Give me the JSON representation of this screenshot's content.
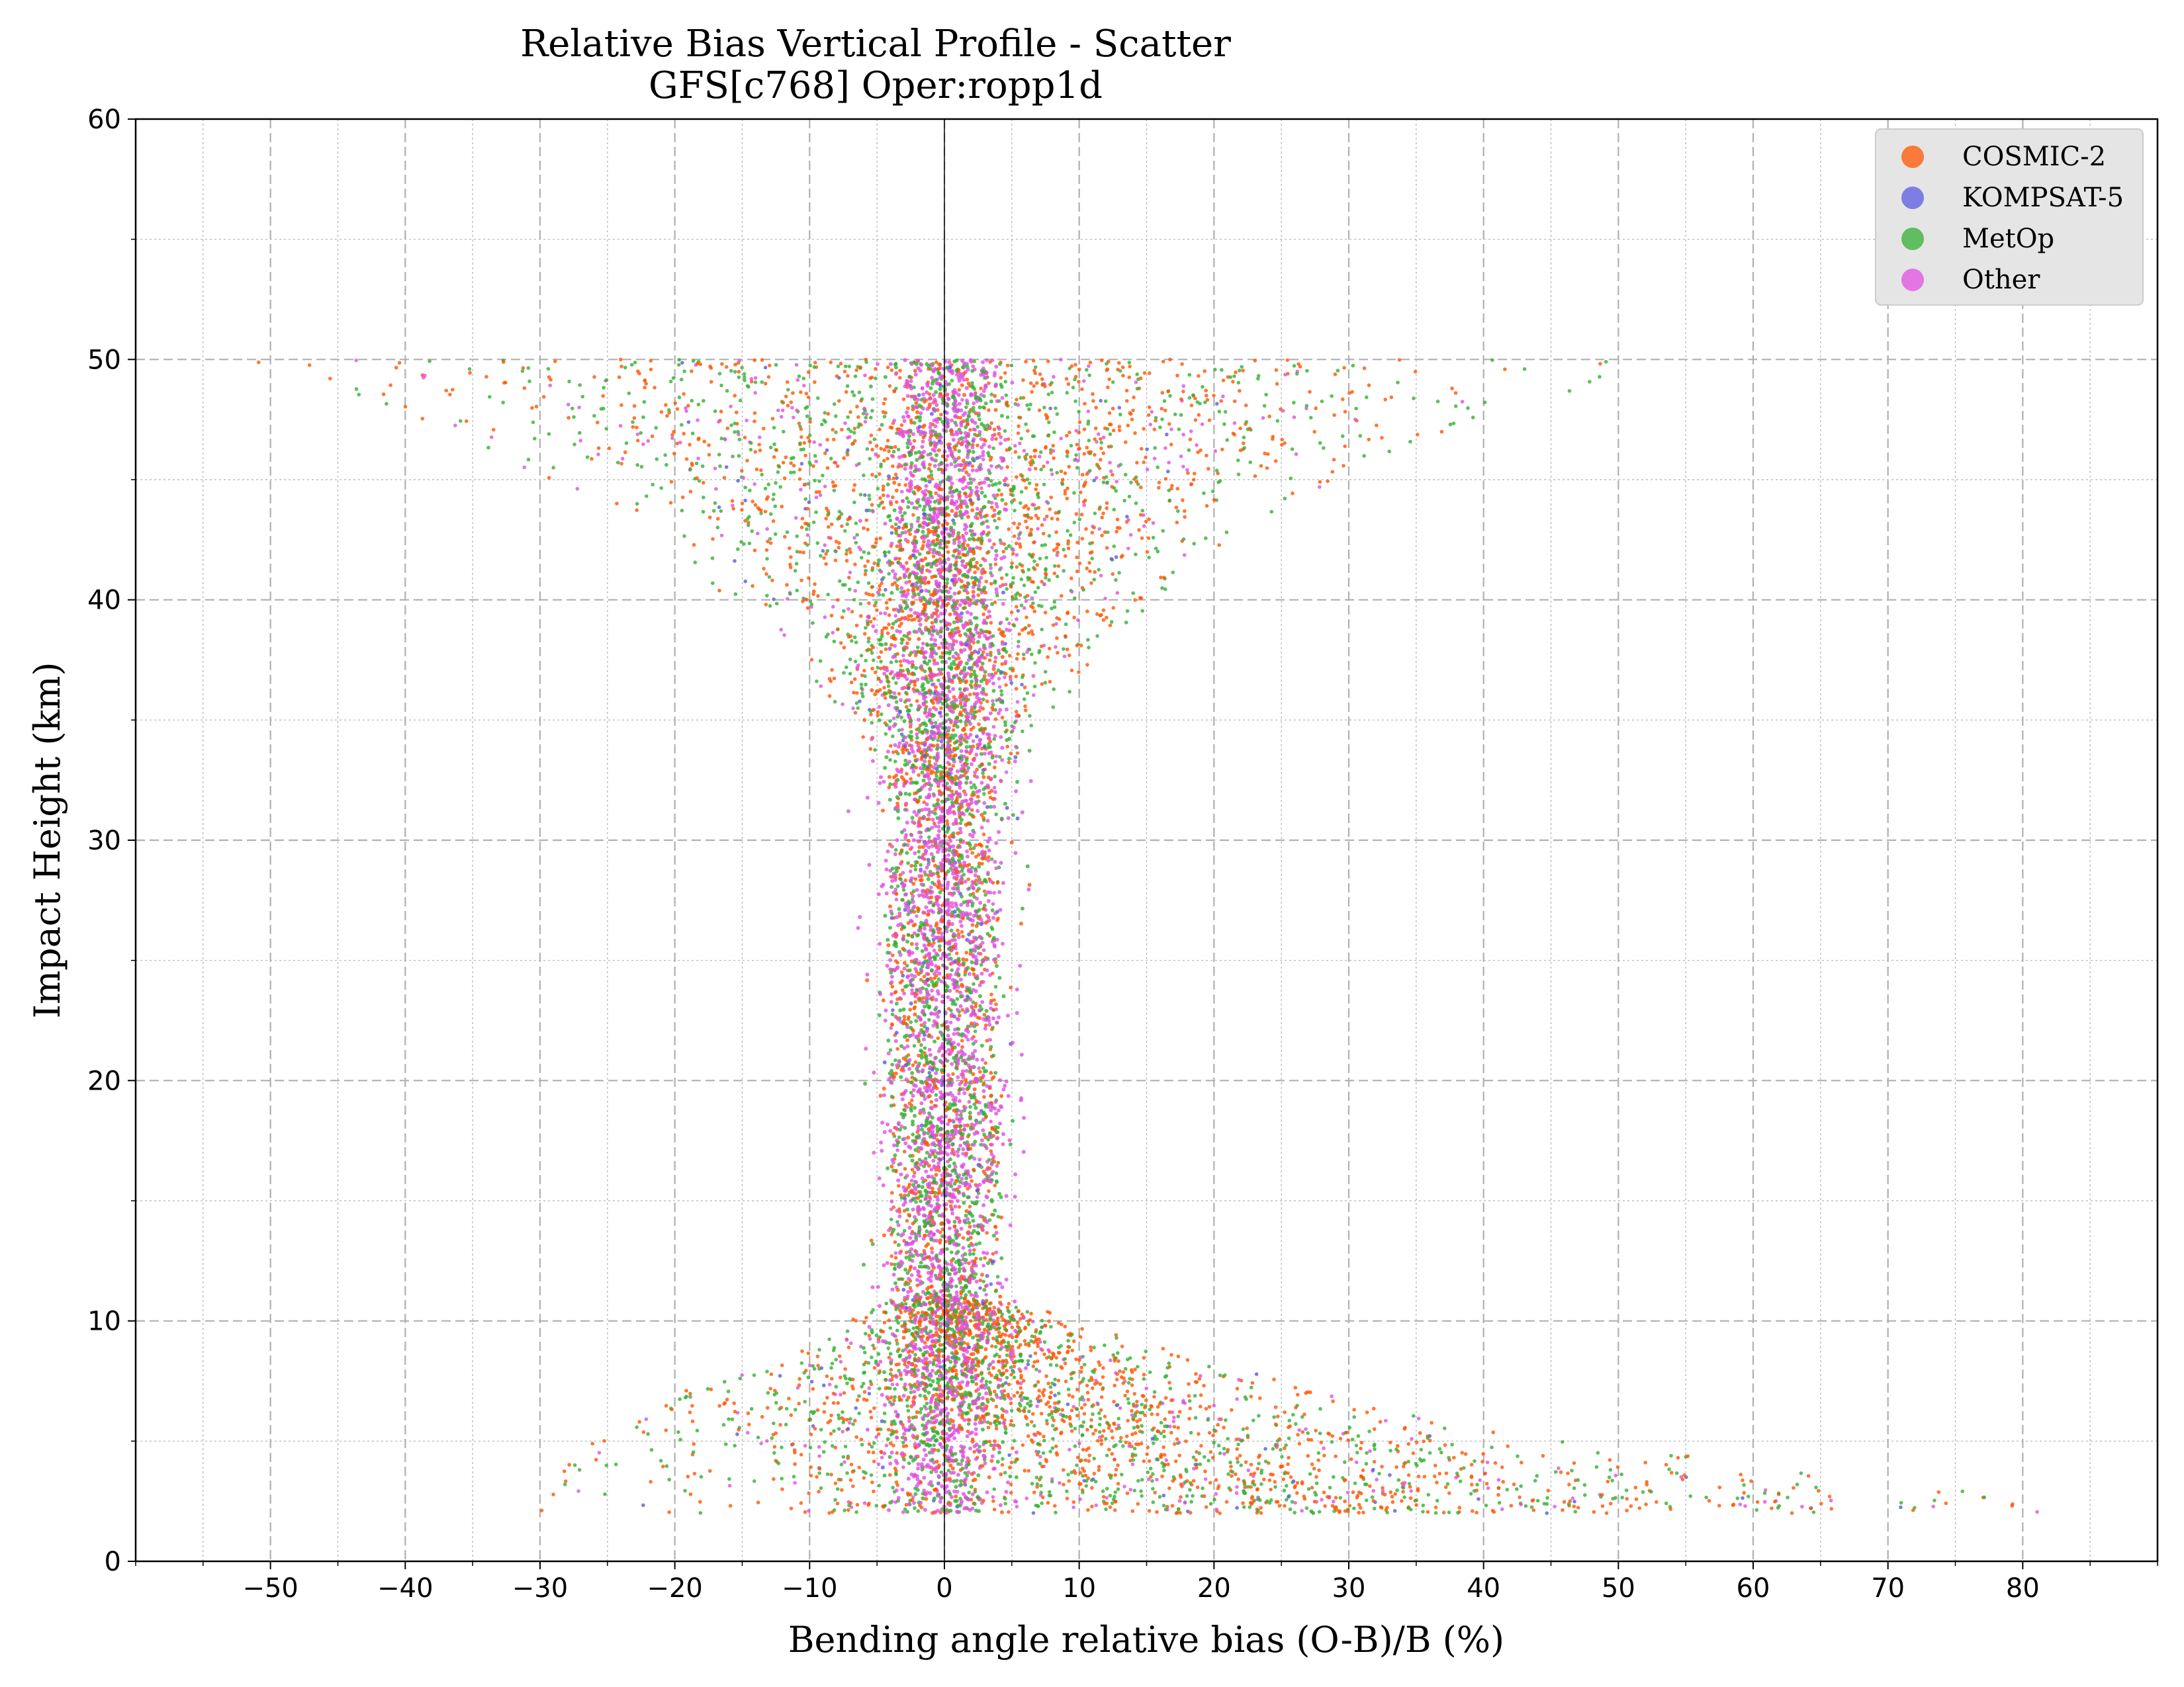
{
  "chart_data": {
    "type": "scatter",
    "title": "Relative Bias Vertical Profile - Scatter",
    "subtitle": "GFS[c768] Oper:ropp1d",
    "xlabel": "Bending angle relative bias (O-B)/B (%)",
    "ylabel": "Impact Height (km)",
    "xlim": [
      -60,
      90
    ],
    "ylim": [
      0,
      60
    ],
    "x_ticks": [
      -50,
      -40,
      -30,
      -20,
      -10,
      0,
      10,
      20,
      30,
      40,
      50,
      60,
      70,
      80
    ],
    "x_tick_labels": [
      "−50",
      "−40",
      "−30",
      "−20",
      "−10",
      "0",
      "10",
      "20",
      "30",
      "40",
      "50",
      "60",
      "70",
      "80"
    ],
    "y_ticks": [
      0,
      10,
      20,
      30,
      40,
      50,
      60
    ],
    "y_tick_labels": [
      "0",
      "10",
      "20",
      "30",
      "40",
      "50",
      "60"
    ],
    "x_minor_step": 5,
    "y_minor_step": 5,
    "grid": true,
    "vertical_reference_line_x": 0,
    "legend_position": "top-right",
    "series": [
      {
        "name": "COSMIC-2",
        "color": "#ff5500"
      },
      {
        "name": "KOMPSAT-5",
        "color": "#5a5ae0"
      },
      {
        "name": "MetOp",
        "color": "#33b033"
      },
      {
        "name": "Other",
        "color": "#e050e0"
      }
    ],
    "distribution_profile": [
      {
        "height": 2,
        "x_min": -31,
        "x_max": 83
      },
      {
        "height": 3,
        "x_min": -30,
        "x_max": 75
      },
      {
        "height": 4,
        "x_min": -28,
        "x_max": 60
      },
      {
        "height": 5,
        "x_min": -26,
        "x_max": 48
      },
      {
        "height": 6,
        "x_min": -23,
        "x_max": 36
      },
      {
        "height": 7,
        "x_min": -20,
        "x_max": 28
      },
      {
        "height": 8,
        "x_min": -15,
        "x_max": 22
      },
      {
        "height": 9,
        "x_min": -11,
        "x_max": 16
      },
      {
        "height": 10,
        "x_min": -7,
        "x_max": 10
      },
      {
        "height": 11,
        "x_min": -4,
        "x_max": 4
      },
      {
        "height": 30,
        "x_min": -4,
        "x_max": 4
      },
      {
        "height": 33,
        "x_min": -5,
        "x_max": 5
      },
      {
        "height": 35,
        "x_min": -8,
        "x_max": 8
      },
      {
        "height": 38,
        "x_min": -12,
        "x_max": 12
      },
      {
        "height": 40,
        "x_min": -16,
        "x_max": 16
      },
      {
        "height": 43,
        "x_min": -22,
        "x_max": 22
      },
      {
        "height": 46,
        "x_min": -33,
        "x_max": 33
      },
      {
        "height": 49,
        "x_min": -46,
        "x_max": 48
      },
      {
        "height": 50,
        "x_min": -53,
        "x_max": 51
      }
    ]
  }
}
